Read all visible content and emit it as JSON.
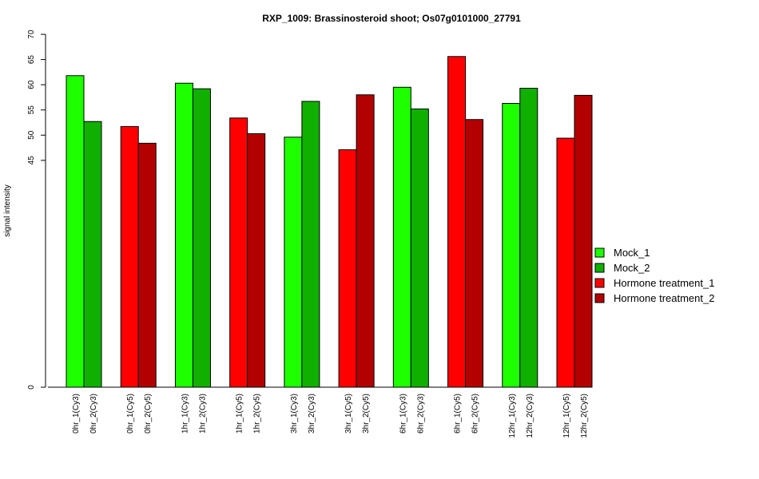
{
  "chart_data": {
    "type": "bar",
    "title": "RXP_1009: Brassinosteroid shoot; Os07g0101000_27791",
    "xlabel": "",
    "ylabel": "signal intensity",
    "ylim": [
      0,
      70
    ],
    "yticks": [
      0,
      45,
      50,
      55,
      60,
      65,
      70
    ],
    "categories": [
      "0hr_1(Cy3)",
      "0hr_2(Cy3)",
      "0hr_1(Cy5)",
      "0hr_2(Cy5)",
      "1hr_1(Cy3)",
      "1hr_2(Cy3)",
      "1hr_1(Cy5)",
      "1hr_2(Cy5)",
      "3hr_1(Cy3)",
      "3hr_2(Cy3)",
      "3hr_1(Cy5)",
      "3hr_2(Cy5)",
      "6hr_1(Cy3)",
      "6hr_2(Cy3)",
      "6hr_1(Cy5)",
      "6hr_2(Cy5)",
      "12hr_1(Cy3)",
      "12hr_2(Cy3)",
      "12hr_1(Cy5)",
      "12hr_2(Cy5)"
    ],
    "values": [
      61.8,
      52.7,
      51.7,
      48.4,
      60.3,
      59.2,
      53.4,
      50.3,
      49.6,
      56.7,
      47.1,
      58.0,
      59.5,
      55.2,
      65.6,
      53.1,
      56.3,
      59.3,
      49.4,
      57.9
    ],
    "series_index": [
      0,
      1,
      2,
      3,
      0,
      1,
      2,
      3,
      0,
      1,
      2,
      3,
      0,
      1,
      2,
      3,
      0,
      1,
      2,
      3
    ],
    "legend": [
      {
        "name": "Mock_1",
        "color": "#1eff00"
      },
      {
        "name": "Mock_2",
        "color": "#10b000"
      },
      {
        "name": "Hormone treatment_1",
        "color": "#ff0000"
      },
      {
        "name": "Hormone treatment_2",
        "color": "#b30000"
      }
    ],
    "legend_position": "right",
    "grid": false
  }
}
